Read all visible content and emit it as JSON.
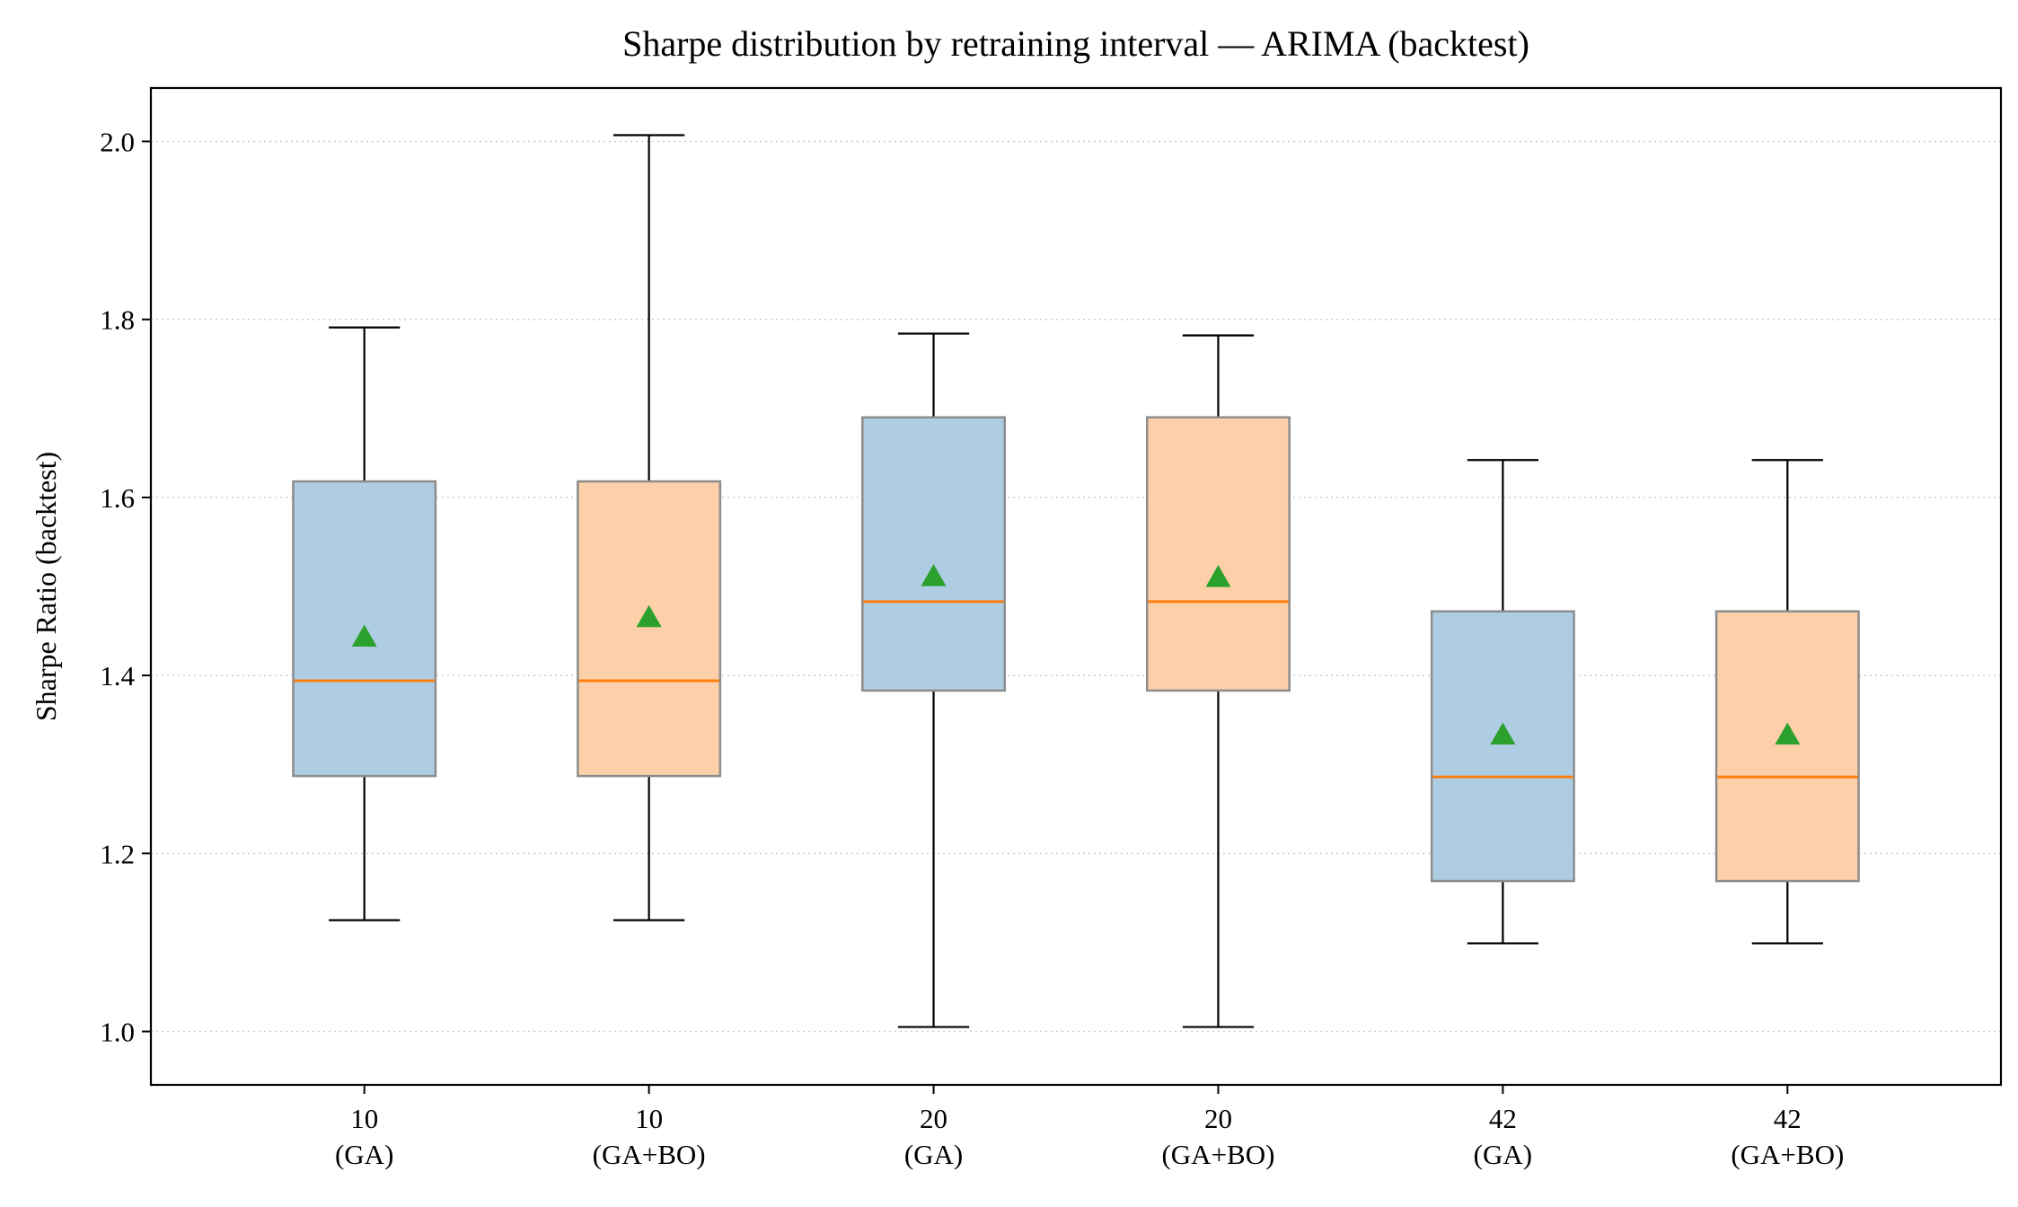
{
  "chart_data": {
    "type": "box",
    "title": "Sharpe distribution by retraining interval — ARIMA (backtest)",
    "xlabel": "",
    "ylabel": "Sharpe Ratio (backtest)",
    "ylim": [
      0.94,
      2.06
    ],
    "yticks": [
      "1.0",
      "1.2",
      "1.4",
      "1.6",
      "1.8",
      "2.0"
    ],
    "grid": "y-dotted",
    "colors": {
      "GA": "#aecde3",
      "GA+BO": "#fed0a9",
      "median": "#ff7f0e",
      "mean": "#2ca02c",
      "box_edge": "#8c8c8c",
      "grid": "#cccccc"
    },
    "boxes": [
      {
        "label_line1": "10",
        "label_line2": "(GA)",
        "method": "GA",
        "whisker_low": 1.125,
        "q1": 1.287,
        "median": 1.394,
        "q3": 1.618,
        "whisker_high": 1.791,
        "mean": 1.443
      },
      {
        "label_line1": "10",
        "label_line2": "(GA+BO)",
        "method": "GA+BO",
        "whisker_low": 1.125,
        "q1": 1.287,
        "median": 1.394,
        "q3": 1.618,
        "whisker_high": 2.007,
        "mean": 1.465
      },
      {
        "label_line1": "20",
        "label_line2": "(GA)",
        "method": "GA",
        "whisker_low": 1.005,
        "q1": 1.383,
        "median": 1.483,
        "q3": 1.69,
        "whisker_high": 1.784,
        "mean": 1.511
      },
      {
        "label_line1": "20",
        "label_line2": "(GA+BO)",
        "method": "GA+BO",
        "whisker_low": 1.005,
        "q1": 1.383,
        "median": 1.483,
        "q3": 1.69,
        "whisker_high": 1.782,
        "mean": 1.51
      },
      {
        "label_line1": "42",
        "label_line2": "(GA)",
        "method": "GA",
        "whisker_low": 1.099,
        "q1": 1.169,
        "median": 1.286,
        "q3": 1.472,
        "whisker_high": 1.642,
        "mean": 1.333
      },
      {
        "label_line1": "42",
        "label_line2": "(GA+BO)",
        "method": "GA+BO",
        "whisker_low": 1.099,
        "q1": 1.169,
        "median": 1.286,
        "q3": 1.472,
        "whisker_high": 1.642,
        "mean": 1.333
      }
    ]
  }
}
